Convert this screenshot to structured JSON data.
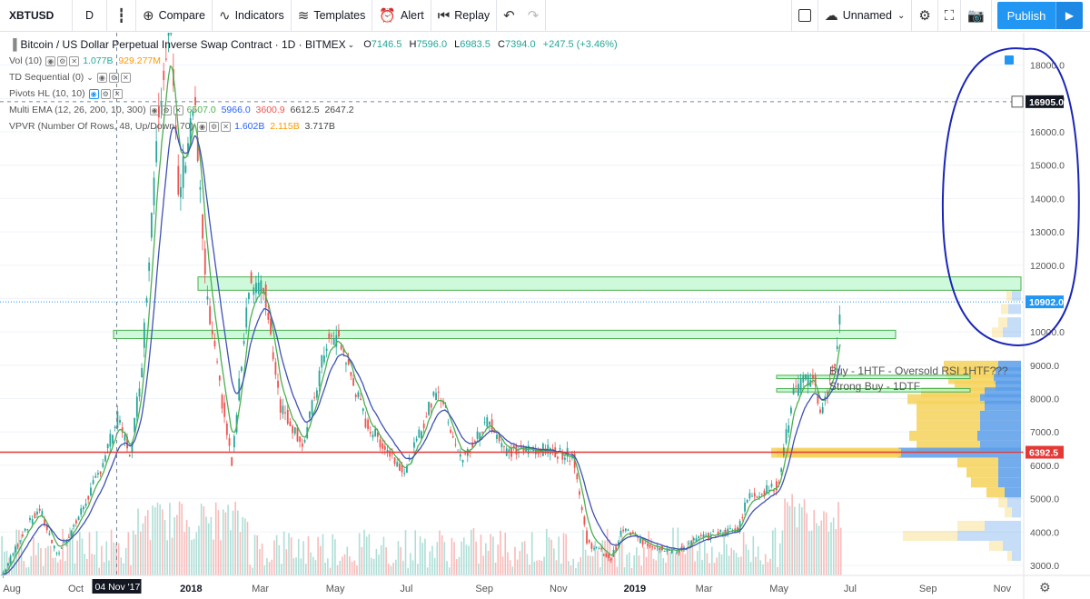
{
  "toolbar": {
    "symbol": "XBTUSD",
    "interval": "D",
    "compare": "Compare",
    "indicators": "Indicators",
    "templates": "Templates",
    "alert": "Alert",
    "replay": "Replay",
    "layout_name": "Unnamed",
    "publish": "Publish"
  },
  "legend": {
    "title": "Bitcoin / US Dollar Perpetual Inverse Swap Contract · 1D · BITMEX",
    "ohlc": {
      "o": "7146.5",
      "h": "7596.0",
      "l": "6983.5",
      "c": "7394.0",
      "chg": "+247.5 (+3.46%)"
    },
    "indicators": [
      {
        "name": "Vol (10)",
        "values": [
          "1.077B",
          "929.277M"
        ]
      },
      {
        "name": "TD Sequential (0)",
        "values": []
      },
      {
        "name": "Pivots HL (10, 10)",
        "values": []
      },
      {
        "name": "Multi EMA (12, 26, 200, 10, 300)",
        "values": [
          "6507.0",
          "5966.0",
          "3600.9",
          "6612.5",
          "2647.2"
        ]
      },
      {
        "name": "VPVR (Number Of Rows, 48, Up/Down, 70)",
        "values": [
          "1.602B",
          "2.115B",
          "3.717B"
        ]
      }
    ]
  },
  "price_axis": {
    "ticks": [
      "18000.0",
      "17000.0",
      "16000.0",
      "15000.0",
      "14000.0",
      "13000.0",
      "12000.0",
      "11000.0",
      "10000.0",
      "9000.0",
      "8000.0",
      "7000.0",
      "6000.0",
      "5000.0",
      "4000.0",
      "3000.0"
    ],
    "crosshair_label": "16905.0",
    "last_price_label": "10902.0",
    "support_label": "6392.5"
  },
  "time_axis": {
    "labels": [
      "Aug",
      "Oct",
      "2018",
      "Mar",
      "May",
      "Jul",
      "Sep",
      "Nov",
      "2019",
      "Mar",
      "May",
      "Jul",
      "Sep",
      "Nov"
    ],
    "crosshair_label": "04 Nov '17"
  },
  "annotations": {
    "buy_1htf": "Buy - 1HTF - Oversold RSI 1HTF???",
    "strong_buy": "Strong Buy - 1DTF"
  },
  "colors": {
    "up": "#26a69a",
    "down": "#ef5350",
    "ema_fast": "#4caf50",
    "ema_slow": "#3f51b5",
    "zone_fill": "#b9f6ca",
    "zone_stroke": "#4caf50",
    "support": "#e53935",
    "vpvr_up": "#f6d25a",
    "vpvr_down": "#5b9ee9",
    "circle": "#1a25b8",
    "accent": "#2196f3"
  },
  "chart_data": {
    "type": "candlestick",
    "y_range": [
      2700,
      18700
    ],
    "support_level": 6392.5,
    "last_price": 10902.0,
    "crosshair_price": 16905.0,
    "resistance_zones": [
      [
        11250,
        11650
      ],
      [
        9800,
        10050
      ]
    ],
    "buy_zones": [
      [
        8600,
        8700
      ],
      [
        8200,
        8300
      ]
    ],
    "close_path": [
      [
        "2017-08-01",
        2700
      ],
      [
        "2017-08-20",
        4100
      ],
      [
        "2017-09-01",
        4700
      ],
      [
        "2017-09-15",
        3300
      ],
      [
        "2017-10-01",
        4300
      ],
      [
        "2017-10-20",
        5800
      ],
      [
        "2017-11-04",
        7400
      ],
      [
        "2017-11-15",
        6300
      ],
      [
        "2017-11-25",
        9500
      ],
      [
        "2017-12-07",
        16500
      ],
      [
        "2017-12-17",
        19500
      ],
      [
        "2017-12-24",
        14000
      ],
      [
        "2018-01-06",
        17000
      ],
      [
        "2018-01-16",
        11000
      ],
      [
        "2018-02-06",
        6000
      ],
      [
        "2018-02-20",
        11500
      ],
      [
        "2018-03-05",
        11200
      ],
      [
        "2018-03-18",
        7800
      ],
      [
        "2018-04-06",
        6600
      ],
      [
        "2018-04-25",
        9700
      ],
      [
        "2018-05-05",
        9800
      ],
      [
        "2018-05-28",
        7200
      ],
      [
        "2018-06-29",
        5800
      ],
      [
        "2018-07-25",
        8400
      ],
      [
        "2018-08-14",
        6100
      ],
      [
        "2018-09-05",
        7400
      ],
      [
        "2018-09-20",
        6400
      ],
      [
        "2018-10-15",
        6500
      ],
      [
        "2018-11-14",
        6300
      ],
      [
        "2018-11-25",
        3700
      ],
      [
        "2018-12-15",
        3200
      ],
      [
        "2018-12-25",
        4100
      ],
      [
        "2019-01-10",
        3700
      ],
      [
        "2019-02-07",
        3400
      ],
      [
        "2019-02-24",
        3800
      ],
      [
        "2019-03-30",
        4100
      ],
      [
        "2019-04-05",
        5000
      ],
      [
        "2019-05-01",
        5400
      ],
      [
        "2019-05-14",
        8200
      ],
      [
        "2019-05-30",
        8700
      ],
      [
        "2019-06-06",
        7500
      ],
      [
        "2019-06-18",
        9300
      ],
      [
        "2019-06-22",
        10900
      ]
    ]
  }
}
